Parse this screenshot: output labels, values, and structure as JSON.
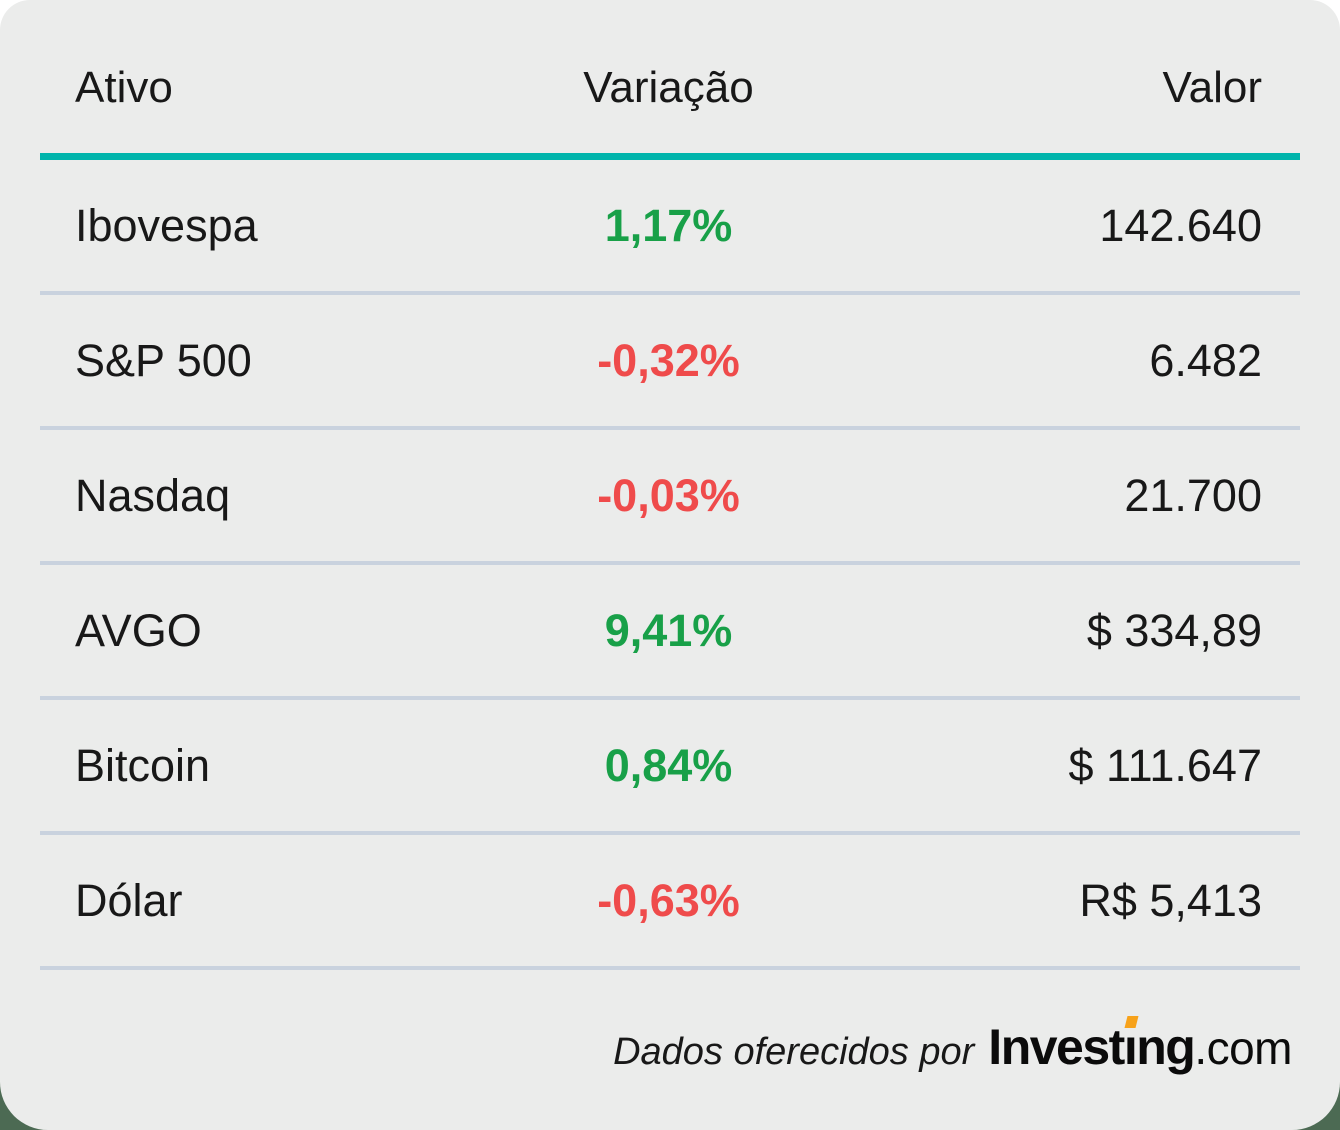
{
  "header": {
    "columns": [
      "Ativo",
      "Variação",
      "Valor"
    ]
  },
  "rows": [
    {
      "asset": "Ibovespa",
      "variation": "1,17%",
      "direction": "up",
      "value": "142.640"
    },
    {
      "asset": "S&P 500",
      "variation": "-0,32%",
      "direction": "down",
      "value": "6.482"
    },
    {
      "asset": "Nasdaq",
      "variation": "-0,03%",
      "direction": "down",
      "value": "21.700"
    },
    {
      "asset": "AVGO",
      "variation": "9,41%",
      "direction": "up",
      "value": "$ 334,89"
    },
    {
      "asset": "Bitcoin",
      "variation": "0,84%",
      "direction": "up",
      "value": "$ 111.647"
    },
    {
      "asset": "Dólar",
      "variation": "-0,63%",
      "direction": "down",
      "value": "R$ 5,413"
    }
  ],
  "footer": {
    "attribution": "Dados oferecidos por",
    "logo_part1": "Invest",
    "logo_i_char": "ı",
    "logo_part2": "ng",
    "logo_suffix": ".com"
  },
  "colors": {
    "card_background": "#EBECEB",
    "accent_teal": "#00B4AB",
    "positive_green": "#18A048",
    "negative_red": "#EF4B4B",
    "divider": "#C9D2DE",
    "text": "#181818",
    "logo_orange": "#F7A21A",
    "page_bottom_green": "#4C6A53"
  },
  "chart_data": {
    "type": "table",
    "title": "",
    "columns": [
      "Ativo",
      "Variação",
      "Valor"
    ],
    "rows": [
      [
        "Ibovespa",
        "1,17%",
        "142.640"
      ],
      [
        "S&P 500",
        "-0,32%",
        "6.482"
      ],
      [
        "Nasdaq",
        "-0,03%",
        "21.700"
      ],
      [
        "AVGO",
        "9,41%",
        "$ 334,89"
      ],
      [
        "Bitcoin",
        "0,84%",
        "$ 111.647"
      ],
      [
        "Dólar",
        "-0,63%",
        "R$ 5,413"
      ]
    ],
    "variation_directions": [
      "up",
      "down",
      "down",
      "up",
      "up",
      "down"
    ],
    "variation_values_percent": [
      1.17,
      -0.32,
      -0.03,
      9.41,
      0.84,
      -0.63
    ],
    "attribution": "Dados oferecidos por Investing.com"
  }
}
